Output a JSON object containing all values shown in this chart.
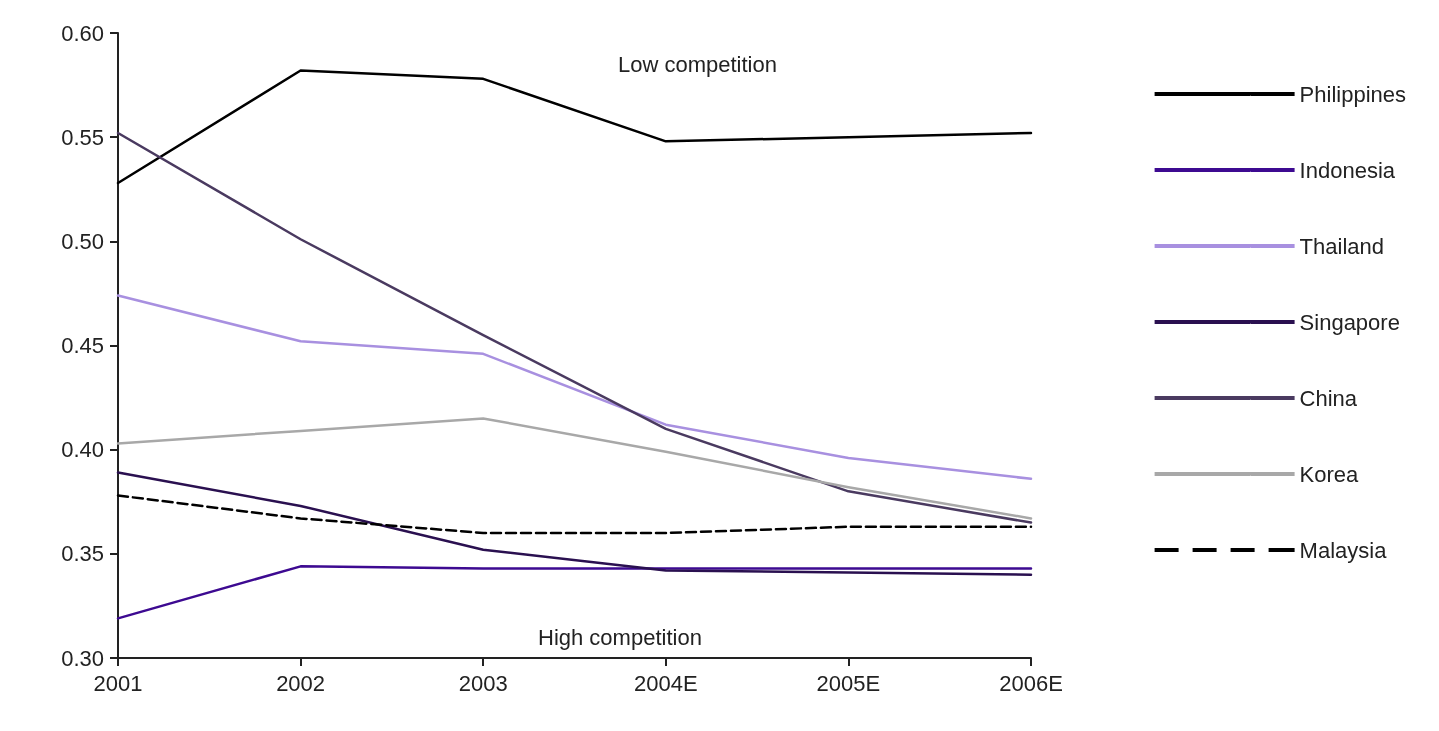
{
  "chart_data": {
    "type": "line",
    "categories": [
      "2001",
      "2002",
      "2003",
      "2004E",
      "2005E",
      "2006E"
    ],
    "series": [
      {
        "name": "Philippines",
        "color": "#000000",
        "values": [
          0.528,
          0.582,
          0.578,
          0.548,
          0.55,
          0.552
        ]
      },
      {
        "name": "Indonesia",
        "color": "#3d0a91",
        "values": [
          0.319,
          0.344,
          0.343,
          0.343,
          0.343,
          0.343
        ]
      },
      {
        "name": "Thailand",
        "color": "#a890e0",
        "values": [
          0.474,
          0.452,
          0.446,
          0.412,
          0.396,
          0.386
        ]
      },
      {
        "name": "Singapore",
        "color": "#2a1050",
        "values": [
          0.389,
          0.373,
          0.352,
          0.342,
          0.341,
          0.34
        ]
      },
      {
        "name": "China",
        "color": "#4a3a60",
        "values": [
          0.552,
          0.501,
          0.455,
          0.41,
          0.38,
          0.365
        ]
      },
      {
        "name": "Korea",
        "color": "#a8a8a8",
        "values": [
          0.403,
          0.409,
          0.415,
          0.399,
          0.382,
          0.367
        ]
      },
      {
        "name": "Malaysia",
        "color": "#000000",
        "line_style": "dashed",
        "values": [
          0.378,
          0.367,
          0.36,
          0.36,
          0.363,
          0.363
        ]
      }
    ],
    "ylim": [
      0.3,
      0.6
    ],
    "yticks": [
      {
        "value": 0.3,
        "label": "0.30"
      },
      {
        "value": 0.35,
        "label": "0.35"
      },
      {
        "value": 0.4,
        "label": "0.40"
      },
      {
        "value": 0.45,
        "label": "0.45"
      },
      {
        "value": 0.5,
        "label": "0.50"
      },
      {
        "value": 0.55,
        "label": "0.55"
      },
      {
        "value": 0.6,
        "label": "0.60"
      }
    ],
    "annotations": [
      "Low competition",
      "High competition"
    ],
    "legend": "right",
    "grid": false,
    "line_style": "solid",
    "marker": "none"
  }
}
